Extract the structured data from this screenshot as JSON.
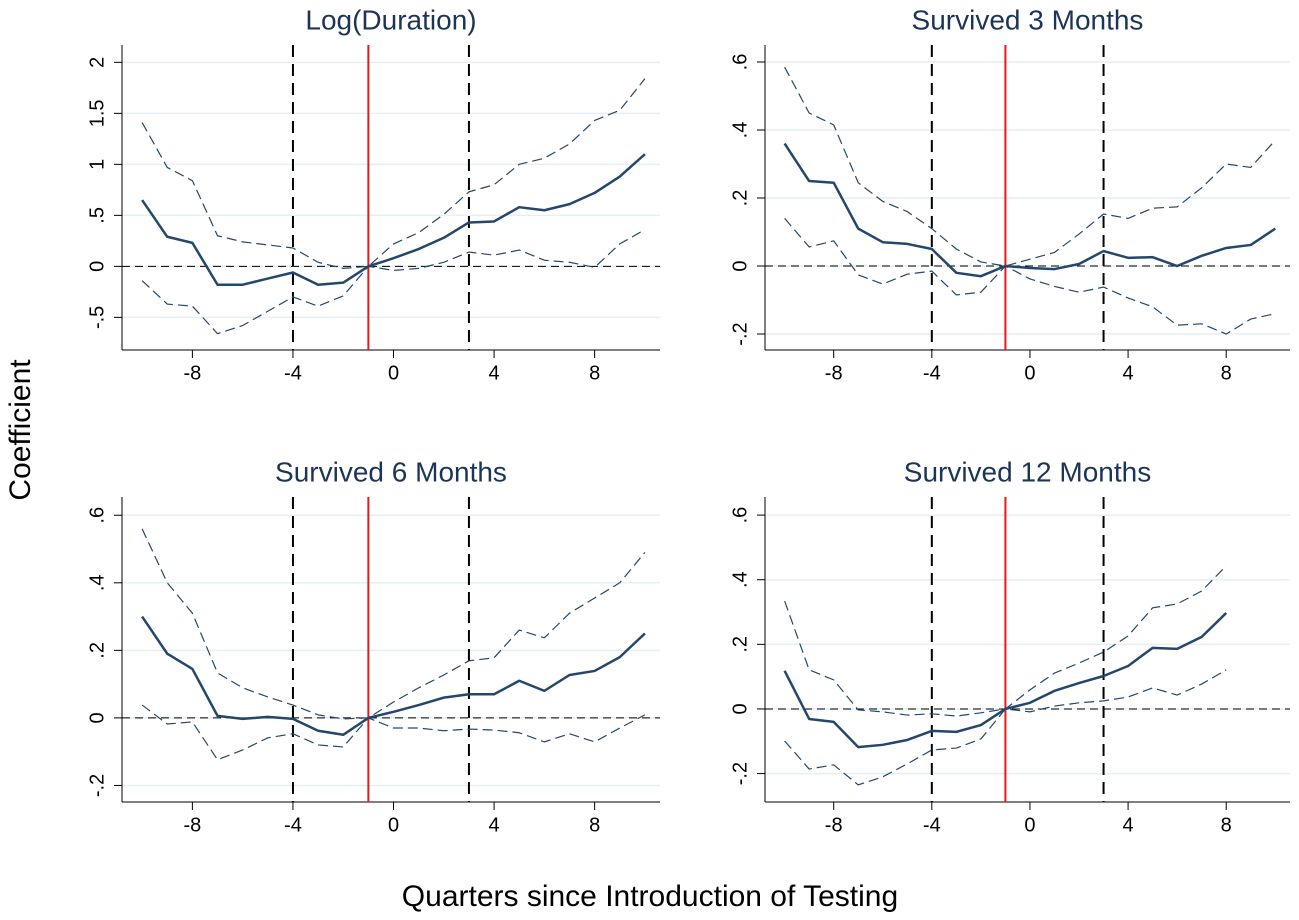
{
  "ylabel": "Coefficient",
  "xlabel": "Quarters since Introduction of Testing",
  "chart_data": [
    {
      "type": "line",
      "title": "Log(Duration)",
      "x": [
        -10,
        -9,
        -8,
        -7,
        -6,
        -5,
        -4,
        -3,
        -2,
        -1,
        0,
        1,
        2,
        3,
        4,
        5,
        6,
        7,
        8,
        9,
        10
      ],
      "series": [
        {
          "color": "#24476b",
          "style": "solid",
          "values": [
            0.65,
            0.29,
            0.23,
            -0.18,
            -0.18,
            -0.12,
            -0.06,
            -0.18,
            -0.16,
            0,
            0.08,
            0.17,
            0.28,
            0.43,
            0.44,
            0.58,
            0.55,
            0.61,
            0.72,
            0.88,
            1.1
          ]
        },
        {
          "color": "#24476b",
          "style": "dashed",
          "values": [
            1.41,
            0.97,
            0.84,
            0.3,
            0.24,
            0.21,
            0.18,
            0.04,
            -0.02,
            0,
            0.22,
            0.33,
            0.51,
            0.73,
            0.8,
            1.0,
            1.06,
            1.2,
            1.43,
            1.53,
            1.84
          ]
        },
        {
          "color": "#24476b",
          "style": "dashed",
          "values": [
            -0.14,
            -0.37,
            -0.39,
            -0.66,
            -0.58,
            -0.44,
            -0.3,
            -0.39,
            -0.29,
            0,
            -0.04,
            -0.02,
            0.04,
            0.14,
            0.11,
            0.16,
            0.06,
            0.04,
            -0.01,
            0.22,
            0.36
          ]
        }
      ],
      "xlim": [
        -10.8,
        10.6
      ],
      "xticks": [
        -8,
        -4,
        0,
        4,
        8
      ],
      "ylim": [
        -0.82,
        2.17
      ],
      "yticks": [
        2,
        1.5,
        1,
        {
          "value": 0.5,
          "label": ".5"
        },
        0,
        {
          "value": -0.5,
          "label": "-.5"
        }
      ],
      "grid": true,
      "hline": 0,
      "vlines": [
        {
          "x": -4,
          "color": "#000000",
          "style": "dashed"
        },
        {
          "x": -1,
          "color": "#e8161b",
          "style": "solid"
        },
        {
          "x": 3,
          "color": "#000000",
          "style": "dashed"
        }
      ]
    },
    {
      "type": "line",
      "title": "Survived 3 Months",
      "x": [
        -10,
        -9,
        -8,
        -7,
        -6,
        -5,
        -4,
        -3,
        -2,
        -1,
        0,
        1,
        2,
        3,
        4,
        5,
        6,
        7,
        8,
        9,
        10
      ],
      "series": [
        {
          "color": "#24476b",
          "style": "solid",
          "values": [
            0.36,
            0.25,
            0.245,
            0.11,
            0.07,
            0.065,
            0.05,
            -0.02,
            -0.03,
            0,
            -0.006,
            -0.009,
            0.006,
            0.044,
            0.024,
            0.026,
            0,
            0.03,
            0.053,
            0.062,
            0.11
          ]
        },
        {
          "color": "#24476b",
          "style": "dashed",
          "values": [
            0.585,
            0.45,
            0.415,
            0.245,
            0.19,
            0.16,
            0.11,
            0.05,
            0.012,
            0,
            0.02,
            0.04,
            0.094,
            0.153,
            0.14,
            0.17,
            0.174,
            0.23,
            0.3,
            0.29,
            0.37
          ]
        },
        {
          "color": "#24476b",
          "style": "dashed",
          "values": [
            0.14,
            0.056,
            0.074,
            -0.026,
            -0.053,
            -0.024,
            -0.015,
            -0.085,
            -0.077,
            0,
            -0.038,
            -0.06,
            -0.077,
            -0.062,
            -0.094,
            -0.12,
            -0.174,
            -0.17,
            -0.2,
            -0.156,
            -0.14
          ]
        }
      ],
      "xlim": [
        -10.8,
        10.6
      ],
      "xticks": [
        -8,
        -4,
        0,
        4,
        8
      ],
      "ylim": [
        -0.247,
        0.65
      ],
      "yticks": [
        {
          "value": 0.6,
          "label": ".6"
        },
        {
          "value": 0.4,
          "label": ".4"
        },
        {
          "value": 0.2,
          "label": ".2"
        },
        0,
        {
          "value": -0.2,
          "label": "-.2"
        }
      ],
      "grid": true,
      "hline": 0,
      "vlines": [
        {
          "x": -4,
          "color": "#000000",
          "style": "dashed"
        },
        {
          "x": -1,
          "color": "#e8161b",
          "style": "solid"
        },
        {
          "x": 3,
          "color": "#000000",
          "style": "dashed"
        }
      ]
    },
    {
      "type": "line",
      "title": "Survived 6 Months",
      "x": [
        -10,
        -9,
        -8,
        -7,
        -6,
        -5,
        -4,
        -3,
        -2,
        -1,
        0,
        1,
        2,
        3,
        4,
        5,
        6,
        7,
        8,
        9,
        10
      ],
      "series": [
        {
          "color": "#24476b",
          "style": "solid",
          "values": [
            0.3,
            0.19,
            0.145,
            0.006,
            -0.003,
            0.003,
            -0.003,
            -0.038,
            -0.05,
            0,
            0.018,
            0.038,
            0.06,
            0.07,
            0.07,
            0.11,
            0.08,
            0.127,
            0.139,
            0.18,
            0.25
          ]
        },
        {
          "color": "#24476b",
          "style": "dashed",
          "values": [
            0.56,
            0.4,
            0.31,
            0.133,
            0.089,
            0.062,
            0.038,
            0.009,
            -0.003,
            0,
            0.047,
            0.089,
            0.127,
            0.169,
            0.178,
            0.26,
            0.237,
            0.31,
            0.355,
            0.4,
            0.49
          ]
        },
        {
          "color": "#24476b",
          "style": "dashed",
          "values": [
            0.038,
            -0.018,
            -0.012,
            -0.124,
            -0.095,
            -0.059,
            -0.047,
            -0.08,
            -0.086,
            0,
            -0.03,
            -0.03,
            -0.038,
            -0.033,
            -0.036,
            -0.044,
            -0.071,
            -0.047,
            -0.071,
            -0.03,
            0.009
          ]
        }
      ],
      "xlim": [
        -10.8,
        10.6
      ],
      "xticks": [
        -8,
        -4,
        0,
        4,
        8
      ],
      "ylim": [
        -0.249,
        0.654
      ],
      "yticks": [
        {
          "value": 0.6,
          "label": ".6"
        },
        {
          "value": 0.4,
          "label": ".4"
        },
        {
          "value": 0.2,
          "label": ".2"
        },
        0,
        {
          "value": -0.2,
          "label": "-.2"
        }
      ],
      "grid": true,
      "hline": 0,
      "vlines": [
        {
          "x": -4,
          "color": "#000000",
          "style": "dashed"
        },
        {
          "x": -1,
          "color": "#e8161b",
          "style": "solid"
        },
        {
          "x": 3,
          "color": "#000000",
          "style": "dashed"
        }
      ]
    },
    {
      "type": "line",
      "title": "Survived 12 Months",
      "x": [
        -10,
        -9,
        -8,
        -7,
        -6,
        -5,
        -4,
        -3,
        -2,
        -1,
        0,
        1,
        2,
        3,
        4,
        5,
        6,
        7,
        8
      ],
      "series": [
        {
          "color": "#24476b",
          "style": "solid",
          "values": [
            0.118,
            -0.031,
            -0.04,
            -0.118,
            -0.111,
            -0.096,
            -0.068,
            -0.071,
            -0.05,
            0,
            0.019,
            0.056,
            0.08,
            0.102,
            0.133,
            0.189,
            0.186,
            0.223,
            0.297
          ]
        },
        {
          "color": "#24476b",
          "style": "dashed",
          "values": [
            0.334,
            0.121,
            0.09,
            -0.003,
            -0.009,
            -0.019,
            -0.015,
            -0.022,
            -0.012,
            0,
            0.059,
            0.111,
            0.142,
            0.176,
            0.226,
            0.313,
            0.325,
            0.365,
            0.443
          ]
        },
        {
          "color": "#24476b",
          "style": "dashed",
          "values": [
            -0.099,
            -0.186,
            -0.173,
            -0.235,
            -0.21,
            -0.17,
            -0.127,
            -0.121,
            -0.093,
            0,
            -0.009,
            0.009,
            0.019,
            0.025,
            0.037,
            0.065,
            0.043,
            0.077,
            0.121
          ]
        }
      ],
      "xlim": [
        -10.8,
        10.6
      ],
      "xticks": [
        -8,
        -4,
        0,
        4,
        8
      ],
      "ylim": [
        -0.288,
        0.656
      ],
      "yticks": [
        {
          "value": 0.6,
          "label": ".6"
        },
        {
          "value": 0.4,
          "label": ".4"
        },
        {
          "value": 0.2,
          "label": ".2"
        },
        0,
        {
          "value": -0.2,
          "label": "-.2"
        }
      ],
      "grid": true,
      "hline": 0,
      "vlines": [
        {
          "x": -4,
          "color": "#000000",
          "style": "dashed"
        },
        {
          "x": -1,
          "color": "#e8161b",
          "style": "solid"
        },
        {
          "x": 3,
          "color": "#000000",
          "style": "dashed"
        }
      ]
    }
  ]
}
